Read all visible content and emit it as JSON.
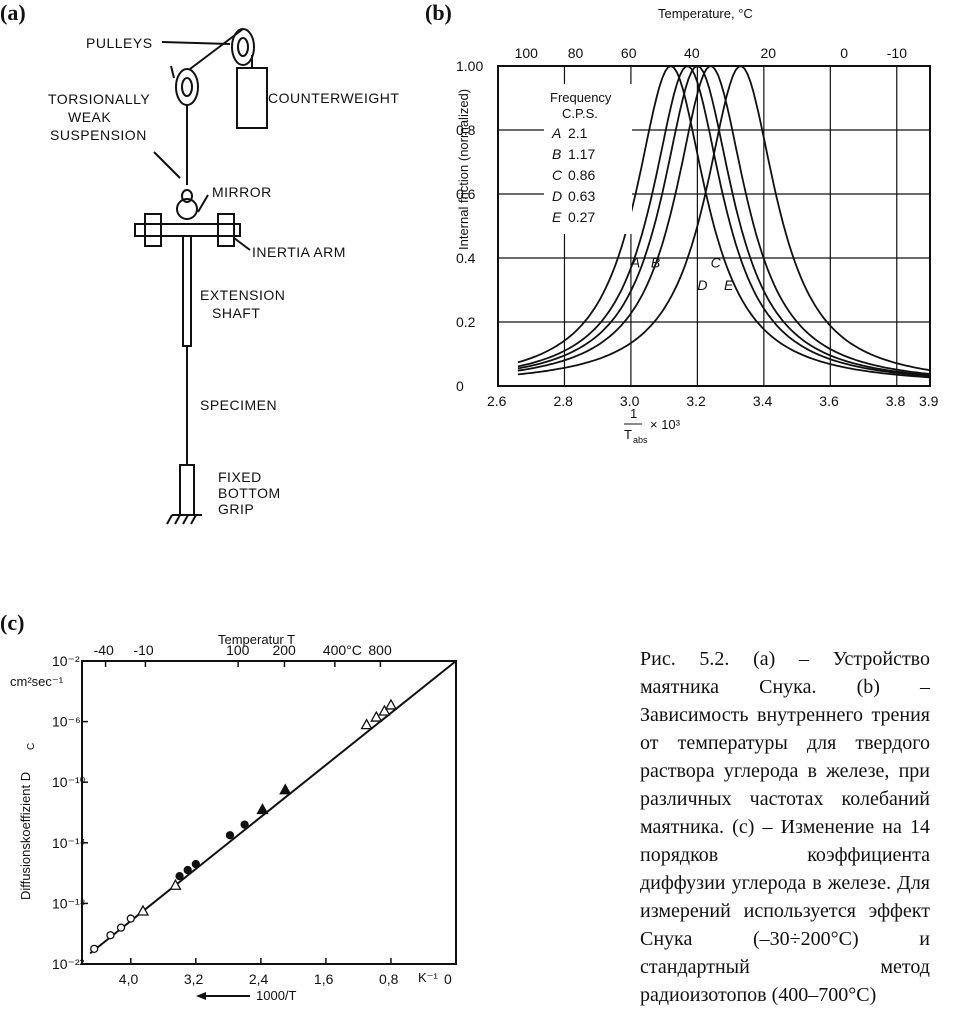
{
  "panels": {
    "a": "(a)",
    "b": "(b)",
    "c": "(c)"
  },
  "apparatus": {
    "labels": {
      "pulleys": "PULLEYS",
      "counterweight": "COUNTERWEIGHT",
      "suspension_1": "TORSIONALLY",
      "suspension_2": "WEAK",
      "suspension_3": "SUSPENSION",
      "mirror": "MIRROR",
      "inertia_arm": "INERTIA ARM",
      "extension_1": "EXTENSION",
      "extension_2": "SHAFT",
      "specimen": "SPECIMEN",
      "grip_1": "FIXED",
      "grip_2": "BOTTOM",
      "grip_3": "GRIP"
    }
  },
  "chart_b_text": {
    "top_axis_title": "Temperature, °C",
    "y_label": "Internal friction (normalized)",
    "x_label_num": "1",
    "x_label_den": "T",
    "x_label_sub": "abs",
    "x_label_mult": "× 10³",
    "legend_title_1": "Frequency",
    "legend_title_2": "C.P.S.",
    "legend": [
      {
        "key": "A",
        "val": "2.1"
      },
      {
        "key": "B",
        "val": "1.17"
      },
      {
        "key": "C",
        "val": "0.86"
      },
      {
        "key": "D",
        "val": "0.63"
      },
      {
        "key": "E",
        "val": "0.27"
      }
    ],
    "top_ticks": [
      "100",
      "80",
      "60",
      "40",
      "20",
      "0",
      "-10"
    ],
    "x_ticks": [
      "2.6",
      "2.8",
      "3.0",
      "3.2",
      "3.4",
      "3.6",
      "3.8",
      "3.9"
    ],
    "y_ticks": [
      "1.00",
      "0.8",
      "0.6",
      "0.4",
      "0.2",
      "0"
    ],
    "curve_labels": [
      "A",
      "B",
      "C",
      "D",
      "E"
    ]
  },
  "chart_c_text": {
    "top_axis_title": "Temperatur T",
    "y_label": "Diffusionskoeffizient D",
    "y_label_sub": "C",
    "y_unit": "cm²sec⁻¹",
    "top_ticks": [
      "-40",
      "-10",
      "100",
      "200",
      "400°C",
      "800"
    ],
    "y_ticks": [
      "10⁻²",
      "10⁻⁶",
      "10⁻¹⁰",
      "10⁻¹⁴",
      "10⁻¹⁸",
      "10⁻²²"
    ],
    "x_ticks": [
      "4,0",
      "3,2",
      "2,4",
      "1,6",
      "0,8",
      "0"
    ],
    "x_unit": "K⁻¹",
    "x_label": "1000/T"
  },
  "caption": "Рис. 5.2. (а) – Устройство маятника Снука. (b) – Зависимость внутреннего трения от температуры для твердого раствора углерода в железе, при различных частотах колебаний маятника. (с) – Изменение на 14 порядков коэффициента диффузии углерода в железе. Для измерений используется эффект Снука (–30÷200°С) и стандартный метод радиоизотопов (400–700°С)",
  "chart_data": [
    {
      "type": "line",
      "xlabel": "1/T_abs × 10³",
      "ylabel": "Internal friction (normalized)",
      "xlim": [
        2.6,
        3.9
      ],
      "ylim": [
        0,
        1.0
      ],
      "top_axis": "Temperature, °C",
      "legend_title": "Frequency C.P.S.",
      "series": [
        {
          "name": "A 2.1",
          "peak_x": 3.12,
          "peak_y": 1.0
        },
        {
          "name": "B 1.17",
          "peak_x": 3.17,
          "peak_y": 1.0
        },
        {
          "name": "C 0.86",
          "peak_x": 3.2,
          "peak_y": 1.0
        },
        {
          "name": "D 0.63",
          "peak_x": 3.24,
          "peak_y": 1.0
        },
        {
          "name": "E 0.27",
          "peak_x": 3.33,
          "peak_y": 1.0
        }
      ],
      "grid": true
    },
    {
      "type": "scatter",
      "xlabel": "1000/T K⁻¹",
      "ylabel": "Diffusionskoeffizient D_C cm²sec⁻¹",
      "xlim": [
        4.6,
        0
      ],
      "ylim_log10": [
        -22,
        -2
      ],
      "top_axis": "Temperatur T",
      "line": [
        [
          4.5,
          -21.3
        ],
        [
          0.0,
          -2.0
        ]
      ],
      "points": [
        {
          "x": 4.45,
          "log_y": -21.0,
          "marker": "open-circle"
        },
        {
          "x": 4.25,
          "log_y": -20.1,
          "marker": "open-circle"
        },
        {
          "x": 4.12,
          "log_y": -19.6,
          "marker": "open-circle"
        },
        {
          "x": 4.0,
          "log_y": -19.0,
          "marker": "open-circle"
        },
        {
          "x": 3.85,
          "log_y": -18.5,
          "marker": "open-triangle"
        },
        {
          "x": 3.45,
          "log_y": -16.8,
          "marker": "open-triangle"
        },
        {
          "x": 3.4,
          "log_y": -16.2,
          "marker": "filled-circle"
        },
        {
          "x": 3.3,
          "log_y": -15.8,
          "marker": "filled-circle"
        },
        {
          "x": 3.2,
          "log_y": -15.4,
          "marker": "filled-circle"
        },
        {
          "x": 2.78,
          "log_y": -13.5,
          "marker": "filled-circle"
        },
        {
          "x": 2.6,
          "log_y": -12.8,
          "marker": "filled-circle"
        },
        {
          "x": 2.38,
          "log_y": -11.8,
          "marker": "filled-triangle"
        },
        {
          "x": 2.1,
          "log_y": -10.5,
          "marker": "filled-triangle"
        },
        {
          "x": 1.1,
          "log_y": -6.2,
          "marker": "open-triangle"
        },
        {
          "x": 0.98,
          "log_y": -5.7,
          "marker": "open-triangle"
        },
        {
          "x": 0.88,
          "log_y": -5.3,
          "marker": "open-triangle"
        },
        {
          "x": 0.8,
          "log_y": -4.9,
          "marker": "open-triangle"
        }
      ]
    }
  ]
}
